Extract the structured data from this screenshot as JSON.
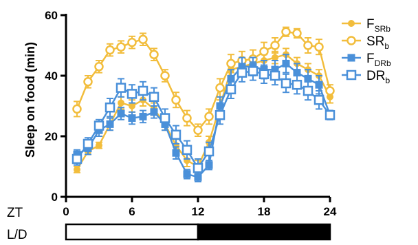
{
  "chart_data": {
    "type": "line",
    "title": "",
    "xlabel": "ZT",
    "ylabel": "Sleep on food (min)",
    "xlim": [
      0,
      24
    ],
    "ylim": [
      0,
      60
    ],
    "x_ticks": [
      "0",
      "6",
      "12",
      "18",
      "24"
    ],
    "y_ticks": [
      "0",
      "20",
      "40",
      "60"
    ],
    "x": [
      1,
      2,
      3,
      4,
      5,
      6,
      7,
      8,
      9,
      10,
      11,
      12,
      13,
      14,
      15,
      16,
      17,
      18,
      19,
      20,
      21,
      22,
      23,
      24
    ],
    "grid": false,
    "legend_position": "top-right",
    "series": [
      {
        "name_main": "F",
        "name_sub": "SRb",
        "color": "#f2bd3c",
        "marker": "circle",
        "filled": true,
        "values": [
          9,
          15,
          17,
          24,
          31,
          30,
          32,
          29,
          24,
          17,
          12,
          10,
          18,
          30,
          42,
          43,
          44,
          45,
          46,
          47,
          44,
          42,
          40,
          33
        ],
        "errors": [
          1,
          1,
          1,
          2,
          2,
          2,
          2,
          2,
          2,
          2,
          2,
          2,
          2,
          2,
          2,
          2,
          2,
          2,
          2,
          2,
          2,
          2,
          2,
          2
        ]
      },
      {
        "name_main": "SR",
        "name_sub": "b",
        "color": "#f2bd3c",
        "marker": "circle",
        "filled": false,
        "values": [
          29,
          38,
          43,
          48.5,
          49.5,
          51,
          52,
          47,
          40,
          32,
          26,
          22,
          26.5,
          36,
          44,
          45,
          45.5,
          48,
          50,
          54.5,
          54,
          50,
          49.5,
          35
        ],
        "errors": [
          2.5,
          2,
          2,
          2,
          2,
          2,
          2,
          2,
          2,
          2.5,
          2.5,
          2,
          2.5,
          3,
          3,
          3,
          3,
          3,
          2.5,
          1.5,
          1.5,
          2.5,
          2.5,
          2
        ]
      },
      {
        "name_main": "F",
        "name_sub": "DRb",
        "color": "#4a90d9",
        "marker": "square",
        "filled": true,
        "values": [
          14,
          16,
          22,
          24,
          27.5,
          26,
          26.5,
          28,
          24,
          14.5,
          7.5,
          6.5,
          10.5,
          30,
          39,
          43,
          43,
          42,
          42,
          44,
          41,
          39,
          37,
          27
        ],
        "errors": [
          1.5,
          2,
          2,
          2,
          2,
          2,
          2,
          2,
          2,
          2,
          1.5,
          1.5,
          1.5,
          3,
          3,
          3,
          3,
          3,
          3,
          3,
          3,
          3,
          3,
          1.5
        ]
      },
      {
        "name_main": "DR",
        "name_sub": "b",
        "color": "#4a90d9",
        "marker": "square",
        "filled": false,
        "values": [
          12.5,
          17.5,
          23.5,
          29.5,
          36,
          34,
          35,
          33,
          26,
          20.5,
          15.5,
          9.5,
          15,
          27,
          35.5,
          41,
          41.5,
          40.5,
          40,
          37.5,
          37,
          35,
          32,
          27
        ],
        "errors": [
          2,
          2,
          2,
          3,
          3,
          3,
          3,
          3,
          3,
          3,
          3,
          3,
          3,
          3,
          3,
          3,
          3,
          3,
          3,
          3,
          3,
          3,
          3,
          1.5
        ]
      }
    ],
    "light_dark_bar": {
      "label": "L/D",
      "segments": [
        {
          "phase": "light",
          "start": 0,
          "end": 12,
          "color": "#ffffff"
        },
        {
          "phase": "dark",
          "start": 12,
          "end": 24,
          "color": "#000000"
        }
      ]
    }
  }
}
